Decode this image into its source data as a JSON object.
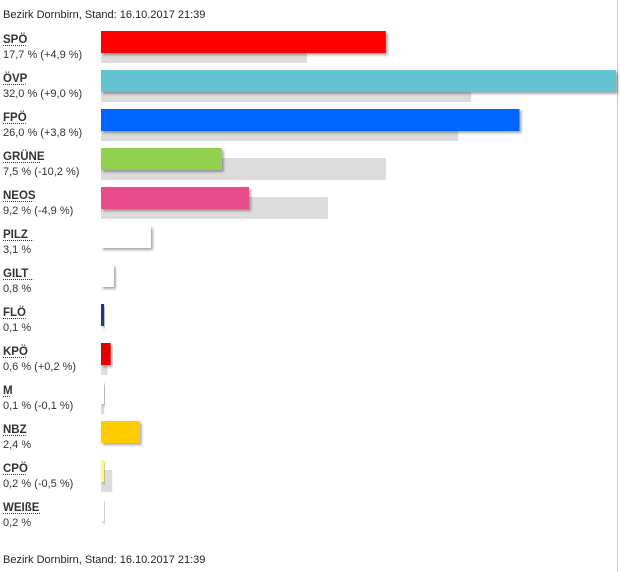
{
  "header": {
    "top_text": "Bezirk Dornbirn, Stand: 16.10.2017 21:39",
    "bottom_text": "Bezirk Dornbirn, Stand: 16.10.2017 21:39"
  },
  "chart_data": {
    "type": "bar",
    "orientation": "horizontal",
    "title": "",
    "xlabel": "",
    "ylabel": "",
    "xlim": [
      0,
      32
    ],
    "grid": false,
    "legend": "none",
    "categories": [
      "SPÖ",
      "ÖVP",
      "FPÖ",
      "GRÜNE",
      "NEOS",
      "PILZ",
      "GILT",
      "FLÖ",
      "KPÖ",
      "M",
      "NBZ",
      "CPÖ",
      "WEIßE"
    ],
    "value_labels": [
      "17,7 % (+4,9 %)",
      "32,0 % (+9,0 %)",
      "26,0 % (+3,8 %)",
      "7,5 % (-10,2 %)",
      "9,2 % (-4,9 %)",
      "3,1 %",
      "0,8 %",
      "0,1 %",
      "0,6 % (+0,2 %)",
      "0,1 % (-0,1 %)",
      "2,4 %",
      "0,2 % (-0,5 %)",
      "0,2 %"
    ],
    "series": [
      {
        "values": [
          17.7,
          32.0,
          26.0,
          7.5,
          9.2,
          3.1,
          0.8,
          0.1,
          0.6,
          0.1,
          2.4,
          0.2,
          0.2
        ]
      },
      {
        "values": [
          12.8,
          23.0,
          22.2,
          17.7,
          14.1,
          null,
          null,
          null,
          0.4,
          0.2,
          null,
          0.7,
          null
        ]
      }
    ],
    "colors": [
      "#ff0000",
      "#63c3d0",
      "#0066ff",
      "#92d050",
      "#e84b8a",
      "#ffffff",
      "#ffffff",
      "#1e3a8a",
      "#e00000",
      "#ffffff",
      "#ffcc00",
      "#ffff66",
      "#ffffff"
    ],
    "previous_color": "#dcdcdc"
  }
}
